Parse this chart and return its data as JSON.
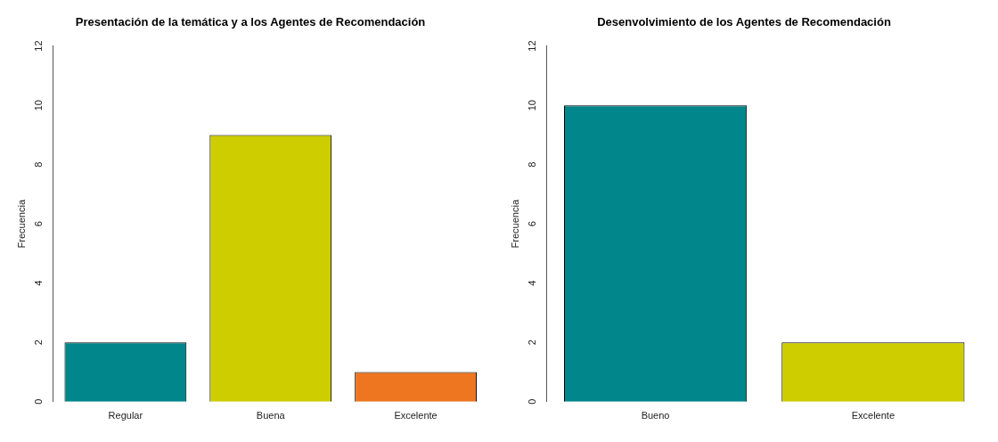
{
  "chart_data": [
    {
      "type": "bar",
      "title": "Presentación de la temática y a los Agentes de Recomendación",
      "ylabel": "Frecuencia",
      "categories": [
        "Regular",
        "Buena",
        "Excelente"
      ],
      "values": [
        2,
        9,
        1
      ],
      "colors": [
        "#00868b",
        "#cdcd00",
        "#ee7621"
      ],
      "ylim": [
        0,
        12
      ],
      "yticks": [
        0,
        2,
        4,
        6,
        8,
        10,
        12
      ]
    },
    {
      "type": "bar",
      "title": "Desenvolvimiento de los Agentes de Recomendación",
      "ylabel": "Frecuencia",
      "categories": [
        "Bueno",
        "Excelente"
      ],
      "values": [
        10,
        2
      ],
      "colors": [
        "#00868b",
        "#cdcd00"
      ],
      "ylim": [
        0,
        12
      ],
      "yticks": [
        0,
        2,
        4,
        6,
        8,
        10,
        12
      ]
    }
  ]
}
